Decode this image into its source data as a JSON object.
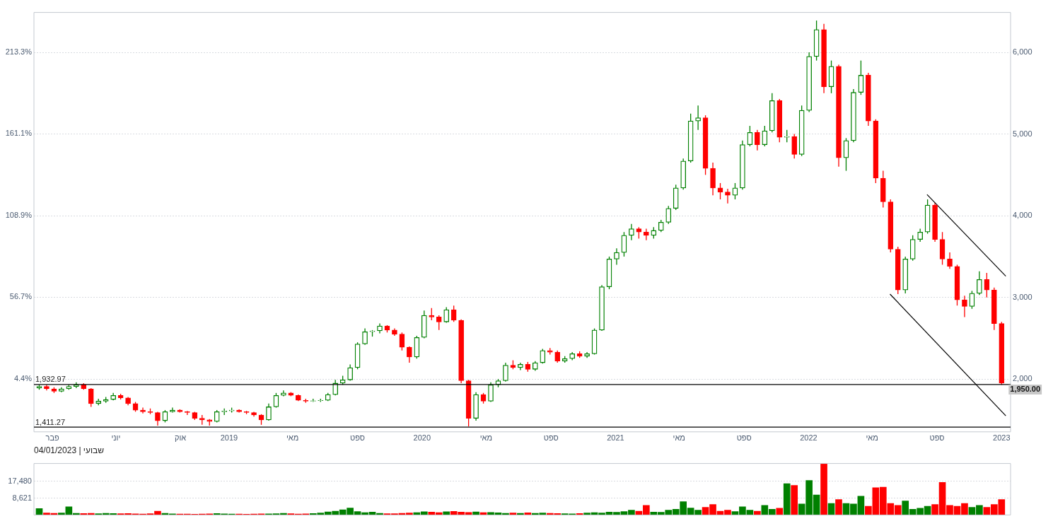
{
  "chart_data": [
    {
      "type": "candlestick",
      "x": [
        "2018-01-07",
        "2018-01-21",
        "2018-02-04",
        "2018-02-18",
        "2018-03-04",
        "2018-03-18",
        "2018-04-01",
        "2018-04-15",
        "2018-04-29",
        "2018-05-13",
        "2018-05-27",
        "2018-06-10",
        "2018-06-24",
        "2018-07-08",
        "2018-07-22",
        "2018-08-05",
        "2018-08-19",
        "2018-09-02",
        "2018-09-16",
        "2018-09-30",
        "2018-10-14",
        "2018-10-28",
        "2018-11-11",
        "2018-11-25",
        "2018-12-09",
        "2018-12-23",
        "2019-01-06",
        "2019-01-20",
        "2019-02-03",
        "2019-02-17",
        "2019-03-03",
        "2019-03-17",
        "2019-03-31",
        "2019-04-14",
        "2019-04-28",
        "2019-05-12",
        "2019-05-26",
        "2019-06-09",
        "2019-06-23",
        "2019-07-07",
        "2019-07-21",
        "2019-08-04",
        "2019-08-18",
        "2019-09-01",
        "2019-09-15",
        "2019-09-29",
        "2019-10-13",
        "2019-10-27",
        "2019-11-10",
        "2019-11-24",
        "2019-12-08",
        "2019-12-22",
        "2020-01-05",
        "2020-01-19",
        "2020-02-02",
        "2020-02-16",
        "2020-03-01",
        "2020-03-15",
        "2020-03-29",
        "2020-04-12",
        "2020-04-26",
        "2020-05-10",
        "2020-05-24",
        "2020-06-07",
        "2020-06-21",
        "2020-07-05",
        "2020-07-19",
        "2020-08-02",
        "2020-08-16",
        "2020-08-30",
        "2020-09-13",
        "2020-09-27",
        "2020-10-11",
        "2020-10-25",
        "2020-11-08",
        "2020-11-22",
        "2020-12-06",
        "2020-12-20",
        "2021-01-03",
        "2021-01-17",
        "2021-01-31",
        "2021-02-14",
        "2021-02-28",
        "2021-03-14",
        "2021-03-28",
        "2021-04-11",
        "2021-04-25",
        "2021-05-09",
        "2021-05-23",
        "2021-06-06",
        "2021-06-20",
        "2021-07-04",
        "2021-07-18",
        "2021-08-01",
        "2021-08-15",
        "2021-08-29",
        "2021-09-12",
        "2021-09-26",
        "2021-10-10",
        "2021-10-24",
        "2021-11-07",
        "2021-11-21",
        "2021-12-05",
        "2021-12-19",
        "2022-01-02",
        "2022-01-16",
        "2022-01-30",
        "2022-02-13",
        "2022-02-27",
        "2022-03-13",
        "2022-03-27",
        "2022-04-10",
        "2022-04-24",
        "2022-05-08",
        "2022-05-22",
        "2022-06-05",
        "2022-06-19",
        "2022-07-03",
        "2022-07-17",
        "2022-07-31",
        "2022-08-14",
        "2022-08-28",
        "2022-09-11",
        "2022-09-25",
        "2022-10-09",
        "2022-10-23",
        "2022-11-06",
        "2022-11-20",
        "2022-12-04",
        "2022-12-18",
        "2023-01-01"
      ],
      "ohlc": [
        [
          1890,
          1930,
          1870,
          1910
        ],
        [
          1910,
          1930,
          1860,
          1880
        ],
        [
          1880,
          1900,
          1830,
          1850
        ],
        [
          1850,
          1900,
          1840,
          1880
        ],
        [
          1880,
          1930,
          1870,
          1910
        ],
        [
          1910,
          1960,
          1890,
          1930
        ],
        [
          1930,
          1950,
          1870,
          1880
        ],
        [
          1880,
          1890,
          1660,
          1700
        ],
        [
          1700,
          1760,
          1680,
          1730
        ],
        [
          1730,
          1780,
          1710,
          1750
        ],
        [
          1750,
          1830,
          1740,
          1800
        ],
        [
          1800,
          1820,
          1750,
          1770
        ],
        [
          1770,
          1780,
          1680,
          1700
        ],
        [
          1700,
          1720,
          1600,
          1620
        ],
        [
          1620,
          1650,
          1580,
          1600
        ],
        [
          1600,
          1640,
          1570,
          1590
        ],
        [
          1590,
          1600,
          1430,
          1490
        ],
        [
          1490,
          1620,
          1470,
          1600
        ],
        [
          1600,
          1650,
          1590,
          1620
        ],
        [
          1620,
          1630,
          1590,
          1600
        ],
        [
          1600,
          1610,
          1560,
          1590
        ],
        [
          1590,
          1600,
          1500,
          1520
        ],
        [
          1520,
          1560,
          1440,
          1500
        ],
        [
          1500,
          1510,
          1430,
          1480
        ],
        [
          1480,
          1620,
          1470,
          1600
        ],
        [
          1600,
          1640,
          1560,
          1610
        ],
        [
          1610,
          1650,
          1590,
          1620
        ],
        [
          1620,
          1630,
          1590,
          1600
        ],
        [
          1600,
          1610,
          1570,
          1590
        ],
        [
          1590,
          1600,
          1540,
          1560
        ],
        [
          1560,
          1570,
          1440,
          1500
        ],
        [
          1500,
          1700,
          1490,
          1660
        ],
        [
          1660,
          1830,
          1650,
          1800
        ],
        [
          1800,
          1860,
          1790,
          1830
        ],
        [
          1830,
          1840,
          1790,
          1800
        ],
        [
          1800,
          1810,
          1730,
          1740
        ],
        [
          1740,
          1760,
          1710,
          1730
        ],
        [
          1730,
          1760,
          1720,
          1735
        ],
        [
          1735,
          1760,
          1720,
          1740
        ],
        [
          1740,
          1830,
          1730,
          1810
        ],
        [
          1810,
          1990,
          1800,
          1950
        ],
        [
          1950,
          2040,
          1930,
          1990
        ],
        [
          1990,
          2180,
          1980,
          2140
        ],
        [
          2140,
          2450,
          2120,
          2430
        ],
        [
          2430,
          2620,
          2420,
          2580
        ],
        [
          2580,
          2600,
          2520,
          2590
        ],
        [
          2590,
          2680,
          2560,
          2650
        ],
        [
          2650,
          2660,
          2570,
          2600
        ],
        [
          2600,
          2620,
          2530,
          2550
        ],
        [
          2550,
          2570,
          2350,
          2390
        ],
        [
          2390,
          2400,
          2200,
          2270
        ],
        [
          2270,
          2530,
          2250,
          2510
        ],
        [
          2510,
          2840,
          2500,
          2780
        ],
        [
          2780,
          2870,
          2720,
          2760
        ],
        [
          2760,
          2780,
          2600,
          2700
        ],
        [
          2700,
          2880,
          2690,
          2850
        ],
        [
          2850,
          2900,
          2700,
          2720
        ],
        [
          2720,
          2730,
          1950,
          1980
        ],
        [
          1980,
          1990,
          1420,
          1520
        ],
        [
          1520,
          1840,
          1490,
          1810
        ],
        [
          1810,
          1830,
          1700,
          1730
        ],
        [
          1730,
          1960,
          1720,
          1930
        ],
        [
          1930,
          2000,
          1900,
          1980
        ],
        [
          1980,
          2200,
          1970,
          2170
        ],
        [
          2170,
          2230,
          2120,
          2140
        ],
        [
          2140,
          2200,
          2110,
          2180
        ],
        [
          2180,
          2210,
          2090,
          2120
        ],
        [
          2120,
          2220,
          2100,
          2200
        ],
        [
          2200,
          2370,
          2190,
          2350
        ],
        [
          2350,
          2380,
          2300,
          2330
        ],
        [
          2330,
          2350,
          2200,
          2220
        ],
        [
          2220,
          2280,
          2200,
          2250
        ],
        [
          2250,
          2330,
          2230,
          2310
        ],
        [
          2310,
          2340,
          2260,
          2280
        ],
        [
          2280,
          2330,
          2260,
          2310
        ],
        [
          2310,
          2620,
          2300,
          2600
        ],
        [
          2600,
          3150,
          2590,
          3130
        ],
        [
          3130,
          3500,
          3100,
          3470
        ],
        [
          3470,
          3600,
          3400,
          3550
        ],
        [
          3550,
          3800,
          3500,
          3760
        ],
        [
          3760,
          3900,
          3700,
          3840
        ],
        [
          3840,
          3860,
          3720,
          3800
        ],
        [
          3800,
          3840,
          3700,
          3760
        ],
        [
          3760,
          3860,
          3720,
          3820
        ],
        [
          3820,
          3950,
          3800,
          3920
        ],
        [
          3920,
          4120,
          3900,
          4090
        ],
        [
          4090,
          4380,
          4070,
          4340
        ],
        [
          4340,
          4700,
          4320,
          4670
        ],
        [
          4670,
          5250,
          4650,
          5160
        ],
        [
          5160,
          5350,
          5050,
          5200
        ],
        [
          5200,
          5230,
          4500,
          4580
        ],
        [
          4580,
          4650,
          4250,
          4340
        ],
        [
          4340,
          4400,
          4200,
          4290
        ],
        [
          4290,
          4330,
          4150,
          4250
        ],
        [
          4250,
          4400,
          4200,
          4340
        ],
        [
          4340,
          4920,
          4320,
          4870
        ],
        [
          4870,
          5100,
          4850,
          5020
        ],
        [
          5020,
          5050,
          4800,
          4870
        ],
        [
          4870,
          5100,
          4850,
          5040
        ],
        [
          5040,
          5500,
          5020,
          5410
        ],
        [
          5410,
          5430,
          4900,
          4960
        ],
        [
          4960,
          5050,
          4900,
          4970
        ],
        [
          4970,
          5000,
          4700,
          4750
        ],
        [
          4750,
          5350,
          4730,
          5290
        ],
        [
          5290,
          6000,
          5270,
          5950
        ],
        [
          5950,
          6390,
          5900,
          6280
        ],
        [
          6280,
          6350,
          5500,
          5580
        ],
        [
          5580,
          5900,
          5500,
          5830
        ],
        [
          5830,
          5850,
          4600,
          4710
        ],
        [
          4710,
          4950,
          4550,
          4920
        ],
        [
          4920,
          5550,
          4900,
          5510
        ],
        [
          5510,
          5900,
          5480,
          5720
        ],
        [
          5720,
          5750,
          5100,
          5160
        ],
        [
          5160,
          5180,
          4400,
          4460
        ],
        [
          4460,
          4550,
          4100,
          4170
        ],
        [
          4170,
          4200,
          3550,
          3590
        ],
        [
          3590,
          3620,
          3040,
          3090
        ],
        [
          3090,
          3500,
          3050,
          3470
        ],
        [
          3470,
          3760,
          3450,
          3710
        ],
        [
          3710,
          3840,
          3680,
          3800
        ],
        [
          3800,
          4200,
          3780,
          4130
        ],
        [
          4130,
          4160,
          3680,
          3710
        ],
        [
          3710,
          3800,
          3400,
          3470
        ],
        [
          3470,
          3550,
          3350,
          3380
        ],
        [
          3380,
          3400,
          2900,
          2970
        ],
        [
          2970,
          3020,
          2760,
          2890
        ],
        [
          2890,
          3080,
          2860,
          3050
        ],
        [
          3050,
          3320,
          3030,
          3220
        ],
        [
          3220,
          3300,
          3000,
          3090
        ],
        [
          3090,
          3120,
          2600,
          2680
        ],
        [
          2680,
          2700,
          1930,
          1950
        ]
      ],
      "colors": [
        "#008000",
        "#ff0000",
        "#ff0000",
        "#008000",
        "#008000",
        "#008000",
        "#ff0000",
        "#ff0000",
        "#008000",
        "#008000",
        "#008000",
        "#ff0000",
        "#ff0000",
        "#ff0000",
        "#ff0000",
        "#ff0000",
        "#ff0000",
        "#008000",
        "#008000",
        "#ff0000",
        "#ff0000",
        "#ff0000",
        "#ff0000",
        "#ff0000",
        "#008000",
        "#008000",
        "#008000",
        "#ff0000",
        "#ff0000",
        "#ff0000",
        "#ff0000",
        "#008000",
        "#008000",
        "#008000",
        "#ff0000",
        "#ff0000",
        "#ff0000",
        "#008000",
        "#008000",
        "#008000",
        "#008000",
        "#008000",
        "#008000",
        "#008000",
        "#008000",
        "#008000",
        "#008000",
        "#ff0000",
        "#ff0000",
        "#ff0000",
        "#ff0000",
        "#008000",
        "#008000",
        "#ff0000",
        "#ff0000",
        "#008000",
        "#ff0000",
        "#ff0000",
        "#ff0000",
        "#008000",
        "#ff0000",
        "#008000",
        "#008000",
        "#008000",
        "#ff0000",
        "#008000",
        "#ff0000",
        "#008000",
        "#008000",
        "#ff0000",
        "#ff0000",
        "#008000",
        "#008000",
        "#ff0000",
        "#008000",
        "#008000",
        "#008000",
        "#008000",
        "#008000",
        "#008000",
        "#008000",
        "#ff0000",
        "#ff0000",
        "#008000",
        "#008000",
        "#008000",
        "#008000",
        "#008000",
        "#008000",
        "#008000",
        "#ff0000",
        "#ff0000",
        "#ff0000",
        "#ff0000",
        "#008000",
        "#008000",
        "#008000",
        "#ff0000",
        "#008000",
        "#008000",
        "#ff0000",
        "#008000",
        "#ff0000",
        "#008000",
        "#008000",
        "#008000",
        "#ff0000",
        "#008000",
        "#ff0000",
        "#008000",
        "#008000",
        "#008000",
        "#ff0000",
        "#ff0000",
        "#ff0000",
        "#ff0000",
        "#ff0000",
        "#008000",
        "#008000",
        "#008000",
        "#008000",
        "#ff0000",
        "#ff0000",
        "#ff0000",
        "#ff0000",
        "#ff0000",
        "#008000",
        "#008000",
        "#ff0000",
        "#ff0000",
        "#ff0000"
      ],
      "series": [
        {
          "type": "line",
          "color": "#000000",
          "x": [
            "2022-08-13",
            "2023-01-09"
          ],
          "values": [
            4260,
            3260
          ]
        },
        {
          "type": "line",
          "color": "#000000",
          "x": [
            "2022-06-04",
            "2023-01-09"
          ],
          "values": [
            3040,
            1550
          ]
        }
      ],
      "ylim": [
        1354,
        6489
      ],
      "yticks": [
        {
          "value": 2000,
          "label": "2,000"
        },
        {
          "value": 3000,
          "label": "3,000"
        },
        {
          "value": 4000,
          "label": "4,000"
        },
        {
          "value": 5000,
          "label": "5,000"
        },
        {
          "value": 6000,
          "label": "6,000"
        }
      ],
      "y2lim": [
        -29.3,
        238.7
      ],
      "y2ticks": [
        {
          "value": 4.4,
          "label": "4.4%"
        },
        {
          "value": 56.7,
          "label": "56.7%"
        },
        {
          "value": 108.9,
          "label": "108.9%"
        },
        {
          "value": 161.1,
          "label": "161.1%"
        },
        {
          "value": 213.3,
          "label": "213.3%"
        }
      ],
      "xlim": [
        "2017-12-28",
        "2023-01-18"
      ],
      "xticks": [
        {
          "value": "2018-02-01",
          "label": "פבר"
        },
        {
          "value": "2018-06-01",
          "label": "יוני"
        },
        {
          "value": "2018-10-01",
          "label": "אוק"
        },
        {
          "value": "2019-01-01",
          "label": "2019"
        },
        {
          "value": "2019-05-01",
          "label": "מאי"
        },
        {
          "value": "2019-09-01",
          "label": "ספט"
        },
        {
          "value": "2020-01-01",
          "label": "2020"
        },
        {
          "value": "2020-05-01",
          "label": "מאי"
        },
        {
          "value": "2020-09-01",
          "label": "ספט"
        },
        {
          "value": "2021-01-01",
          "label": "2021"
        },
        {
          "value": "2021-05-01",
          "label": "מאי"
        },
        {
          "value": "2021-09-01",
          "label": "ספט"
        },
        {
          "value": "2022-01-01",
          "label": "2022"
        },
        {
          "value": "2022-05-01",
          "label": "מאי"
        },
        {
          "value": "2022-09-01",
          "label": "ספט"
        },
        {
          "value": "2023-01-01",
          "label": "2023"
        }
      ],
      "grid": "y",
      "ref_lines": [
        {
          "axis": "y",
          "value": 1932.97,
          "label": "1,932.97",
          "color": "#000000"
        },
        {
          "axis": "y",
          "value": 1411.27,
          "label": "1,411.27",
          "color": "#000000"
        }
      ],
      "annotations": [
        {
          "text": "1,950.00",
          "x": "2023-01-01",
          "y": 1950
        },
        "שבועי | 04/01/2023"
      ]
    },
    {
      "type": "bar",
      "x": [
        "2018-01-07",
        "2018-01-21",
        "2018-02-04",
        "2018-02-18",
        "2018-03-04",
        "2018-03-18",
        "2018-04-01",
        "2018-04-15",
        "2018-04-29",
        "2018-05-13",
        "2018-05-27",
        "2018-06-10",
        "2018-06-24",
        "2018-07-08",
        "2018-07-22",
        "2018-08-05",
        "2018-08-19",
        "2018-09-02",
        "2018-09-16",
        "2018-09-30",
        "2018-10-14",
        "2018-10-28",
        "2018-11-11",
        "2018-11-25",
        "2018-12-09",
        "2018-12-23",
        "2019-01-06",
        "2019-01-20",
        "2019-02-03",
        "2019-02-17",
        "2019-03-03",
        "2019-03-17",
        "2019-03-31",
        "2019-04-14",
        "2019-04-28",
        "2019-05-12",
        "2019-05-26",
        "2019-06-09",
        "2019-06-23",
        "2019-07-07",
        "2019-07-21",
        "2019-08-04",
        "2019-08-18",
        "2019-09-01",
        "2019-09-15",
        "2019-09-29",
        "2019-10-13",
        "2019-10-27",
        "2019-11-10",
        "2019-11-24",
        "2019-12-08",
        "2019-12-22",
        "2020-01-05",
        "2020-01-19",
        "2020-02-02",
        "2020-02-16",
        "2020-03-01",
        "2020-03-15",
        "2020-03-29",
        "2020-04-12",
        "2020-04-26",
        "2020-05-10",
        "2020-05-24",
        "2020-06-07",
        "2020-06-21",
        "2020-07-05",
        "2020-07-19",
        "2020-08-02",
        "2020-08-16",
        "2020-08-30",
        "2020-09-13",
        "2020-09-27",
        "2020-10-11",
        "2020-10-25",
        "2020-11-08",
        "2020-11-22",
        "2020-12-06",
        "2020-12-20",
        "2021-01-03",
        "2021-01-17",
        "2021-01-31",
        "2021-02-14",
        "2021-02-28",
        "2021-03-14",
        "2021-03-28",
        "2021-04-11",
        "2021-04-25",
        "2021-05-09",
        "2021-05-23",
        "2021-06-06",
        "2021-06-20",
        "2021-07-04",
        "2021-07-18",
        "2021-08-01",
        "2021-08-15",
        "2021-08-29",
        "2021-09-12",
        "2021-09-26",
        "2021-10-10",
        "2021-10-24",
        "2021-11-07",
        "2021-11-21",
        "2021-12-05",
        "2021-12-19",
        "2022-01-02",
        "2022-01-16",
        "2022-01-30",
        "2022-02-13",
        "2022-02-27",
        "2022-03-13",
        "2022-03-27",
        "2022-04-10",
        "2022-04-24",
        "2022-05-08",
        "2022-05-22",
        "2022-06-05",
        "2022-06-19",
        "2022-07-03",
        "2022-07-17",
        "2022-07-31",
        "2022-08-14",
        "2022-08-28",
        "2022-09-11",
        "2022-09-25",
        "2022-10-09",
        "2022-10-23",
        "2022-11-06",
        "2022-11-20",
        "2022-12-04",
        "2022-12-18",
        "2023-01-01"
      ],
      "values": [
        3300,
        1000,
        900,
        1000,
        4300,
        900,
        800,
        900,
        700,
        900,
        800,
        700,
        800,
        600,
        500,
        700,
        2000,
        900,
        600,
        500,
        500,
        400,
        500,
        600,
        800,
        600,
        500,
        500,
        400,
        500,
        600,
        600,
        700,
        900,
        700,
        500,
        600,
        800,
        1000,
        1600,
        2000,
        2700,
        3600,
        1800,
        1200,
        1500,
        900,
        700,
        700,
        900,
        1000,
        1200,
        1700,
        1500,
        1200,
        1700,
        1900,
        1500,
        1300,
        1600,
        1200,
        1300,
        1100,
        900,
        1000,
        900,
        1100,
        900,
        1000,
        900,
        800,
        700,
        600,
        800,
        1000,
        1200,
        1000,
        1500,
        1400,
        1800,
        2500,
        2000,
        5000,
        1500,
        1400,
        2500,
        3000,
        6900,
        3600,
        2500,
        4000,
        5500,
        2000,
        2500,
        1800,
        4300,
        2500,
        2000,
        5000,
        3000,
        3500,
        16300,
        15400,
        5700,
        18000,
        10400,
        26600,
        6000,
        8000,
        6000,
        5700,
        9800,
        4500,
        14200,
        14500,
        6000,
        5000,
        7300,
        3000,
        3500,
        4500,
        5500,
        17000,
        5000,
        4500,
        6000,
        4000,
        5000,
        4000,
        5500,
        8000
      ],
      "colors": [
        "#008000",
        "#ff0000",
        "#ff0000",
        "#008000",
        "#008000",
        "#008000",
        "#ff0000",
        "#ff0000",
        "#008000",
        "#008000",
        "#008000",
        "#ff0000",
        "#ff0000",
        "#ff0000",
        "#ff0000",
        "#ff0000",
        "#ff0000",
        "#008000",
        "#008000",
        "#ff0000",
        "#ff0000",
        "#ff0000",
        "#ff0000",
        "#ff0000",
        "#008000",
        "#008000",
        "#008000",
        "#ff0000",
        "#ff0000",
        "#ff0000",
        "#ff0000",
        "#008000",
        "#008000",
        "#008000",
        "#ff0000",
        "#ff0000",
        "#ff0000",
        "#008000",
        "#008000",
        "#008000",
        "#008000",
        "#008000",
        "#008000",
        "#008000",
        "#008000",
        "#008000",
        "#008000",
        "#ff0000",
        "#ff0000",
        "#ff0000",
        "#ff0000",
        "#008000",
        "#008000",
        "#ff0000",
        "#ff0000",
        "#008000",
        "#ff0000",
        "#ff0000",
        "#ff0000",
        "#008000",
        "#ff0000",
        "#008000",
        "#008000",
        "#008000",
        "#ff0000",
        "#008000",
        "#ff0000",
        "#008000",
        "#008000",
        "#ff0000",
        "#ff0000",
        "#008000",
        "#008000",
        "#ff0000",
        "#008000",
        "#008000",
        "#008000",
        "#008000",
        "#008000",
        "#008000",
        "#008000",
        "#ff0000",
        "#ff0000",
        "#008000",
        "#008000",
        "#008000",
        "#008000",
        "#008000",
        "#008000",
        "#008000",
        "#ff0000",
        "#ff0000",
        "#ff0000",
        "#ff0000",
        "#008000",
        "#008000",
        "#008000",
        "#ff0000",
        "#008000",
        "#008000",
        "#ff0000",
        "#008000",
        "#ff0000",
        "#008000",
        "#008000",
        "#008000",
        "#ff0000",
        "#008000",
        "#ff0000",
        "#008000",
        "#008000",
        "#008000",
        "#ff0000",
        "#ff0000",
        "#ff0000",
        "#ff0000",
        "#ff0000",
        "#008000",
        "#008000",
        "#008000",
        "#008000",
        "#ff0000",
        "#ff0000",
        "#ff0000",
        "#ff0000",
        "#ff0000",
        "#008000",
        "#008000",
        "#ff0000",
        "#ff0000",
        "#ff0000"
      ],
      "ylim": [
        0,
        26800
      ],
      "yticks": [
        {
          "value": 8621,
          "label": "8,621"
        },
        {
          "value": 17480,
          "label": "17,480"
        }
      ],
      "xlim": [
        "2017-12-28",
        "2023-01-18"
      ],
      "grid": "y",
      "tick_labels": "y"
    }
  ]
}
